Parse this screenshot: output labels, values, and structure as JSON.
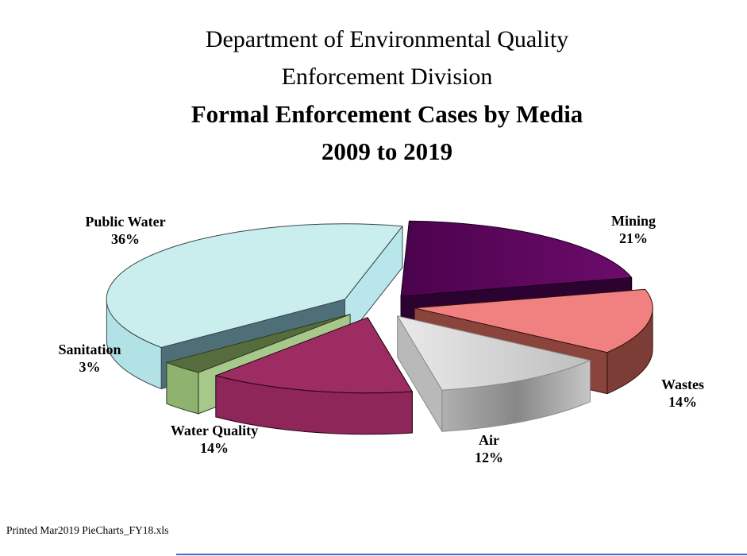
{
  "title": {
    "line1": "Department of Environmental Quality",
    "line2": "Enforcement Division",
    "line3": "Formal Enforcement Cases by Media",
    "line4": "2009 to 2019"
  },
  "footer": {
    "printed_note": "Printed Mar2019 PieCharts_FY18.xls",
    "rule_color": "#4168cf"
  },
  "chart_data": {
    "type": "pie",
    "style": "3d-exploded",
    "title": "Formal Enforcement Cases by Media 2009 to 2019",
    "layout_hints": {
      "start_angle_deg": -90,
      "direction": "clockwise",
      "explode_pct": 16,
      "legend": "none",
      "labels": "outside"
    },
    "slices": [
      {
        "label": "Mining",
        "value_pct": 21,
        "pct_label": "21%",
        "colors": {
          "top": [
            "#4b034d",
            "#6e0b6c"
          ],
          "side": "#2c0330",
          "radial_start": "#47054a",
          "radial_end": "#2c0330",
          "stroke": "#180018"
        }
      },
      {
        "label": "Wastes",
        "value_pct": 14,
        "pct_label": "14%",
        "colors": {
          "top": "#f08180",
          "side": "#7d3d37",
          "radial_end": "#8a443c",
          "stroke": "#33100d"
        }
      },
      {
        "label": "Air",
        "value_pct": 12,
        "pct_label": "12%",
        "colors": {
          "top": [
            "#e9e9e9",
            "#bebebe"
          ],
          "side": [
            "#b0b0b0",
            "#878787",
            "#c6c6c6"
          ],
          "radial_end": "#b9b9b9",
          "stroke": "#8a8a8a"
        }
      },
      {
        "label": "Water Quality",
        "value_pct": 14,
        "pct_label": "14%",
        "colors": {
          "top": "#9c2c62",
          "side": "#8e2659",
          "radial_start": "#7b2150",
          "stroke": "#270514"
        }
      },
      {
        "label": "Sanitation",
        "value_pct": 3,
        "pct_label": "3%",
        "colors": {
          "top": "#566c3d",
          "side": "#8fb271",
          "radial_start": "#a6c88b",
          "stroke": "#2f3d1d"
        }
      },
      {
        "label": "Public Water",
        "value_pct": 36,
        "pct_label": "36%",
        "colors": {
          "top": "#caeded",
          "side": "#b2e2e6",
          "radial_start": "#4e6e78",
          "radial_end": "#b8e6ea",
          "stroke": "#37474f"
        }
      }
    ]
  }
}
